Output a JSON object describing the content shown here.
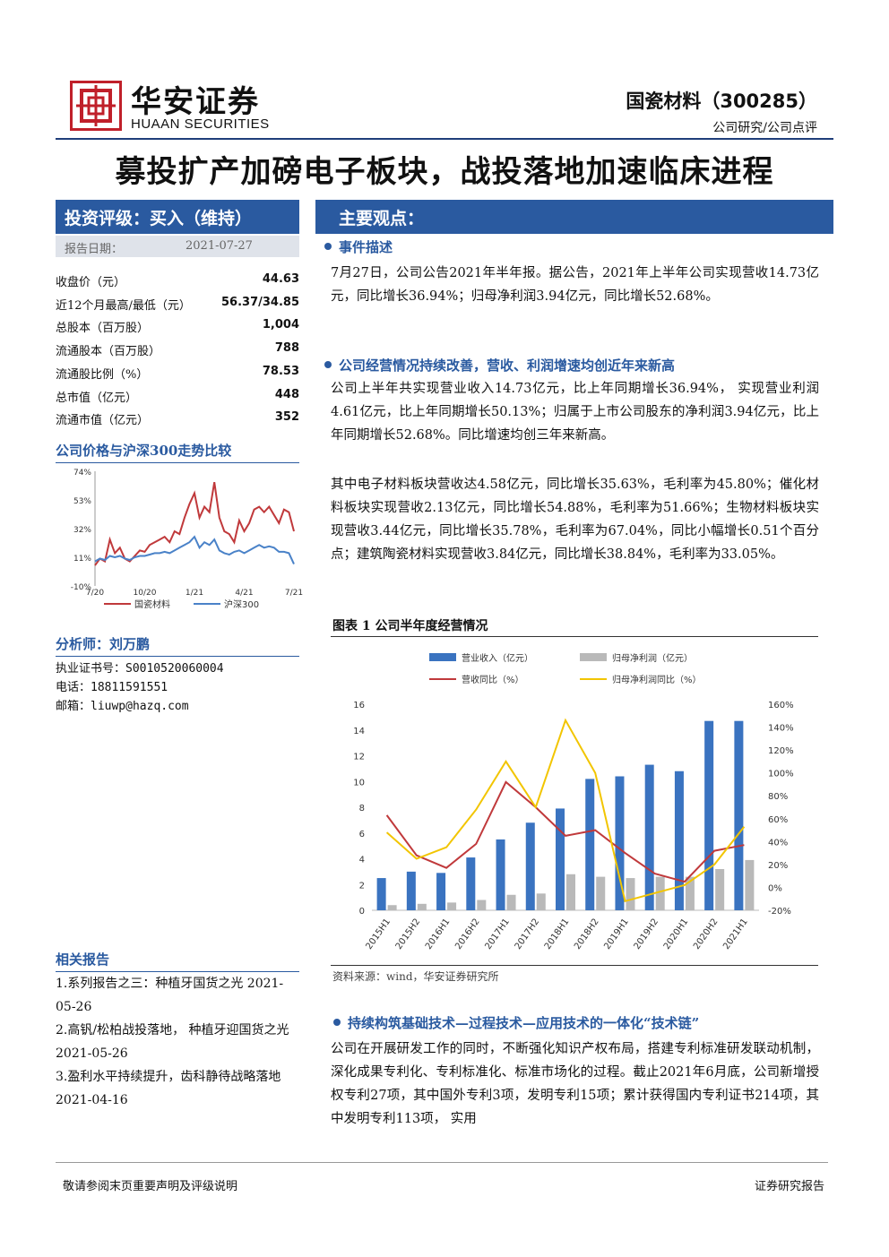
{
  "header": {
    "logo_cn": "华安证券",
    "logo_en": "HUAAN SECURITIES",
    "stock": "国瓷材料（300285）",
    "category": "公司研究/公司点评"
  },
  "title": "募投扩产加磅电子板块，战投落地加速临床进程",
  "sidebar": {
    "rating": "投资评级：买入（维持）",
    "date_label": "报告日期：",
    "date_value": "2021-07-27",
    "stats": [
      {
        "label": "收盘价（元）",
        "value": "44.63"
      },
      {
        "label": "近12个月最高/最低（元）",
        "value": "56.37/34.85"
      },
      {
        "label": "总股本（百万股）",
        "value": "1,004"
      },
      {
        "label": "流通股本（百万股）",
        "value": "788"
      },
      {
        "label": "流通股比例（%）",
        "value": "78.53"
      },
      {
        "label": "总市值（亿元）",
        "value": "448"
      },
      {
        "label": "流通市值（亿元）",
        "value": "352"
      }
    ],
    "price_chart_title": "公司价格与沪深300走势比较",
    "analyst_title": "分析师：刘万鹏",
    "analyst_cert": "执业证书号：S0010520060004",
    "analyst_phone": "电话：18811591551",
    "analyst_email": "邮箱：liuwp@hazq.com",
    "related_title": "相关报告",
    "related": [
      "1.系列报告之三：种植牙国货之光 2021-05-26",
      "2.高钒/松柏战投落地，  种植牙迎国货之光 2021-05-26",
      "3.盈利水平持续提升，齿科静待战略落地 2021-04-16"
    ]
  },
  "main": {
    "heading": "主要观点：",
    "s1_title": "事件描述",
    "s1_text": "7月27日，公司公告2021年半年报。据公告，2021年上半年公司实现营收14.73亿元，同比增长36.94%；归母净利润3.94亿元，同比增长52.68%。",
    "s2_title": "公司经营情况持续改善，营收、利润增速均创近年来新高",
    "s2_p1": "公司上半年共实现营业收入14.73亿元，比上年同期增长36.94%， 实现营业利润4.61亿元，比上年同期增长50.13%；归属于上市公司股东的净利润3.94亿元，比上年同期增长52.68%。同比增速均创三年来新高。",
    "s2_p2": "其中电子材料板块营收达4.58亿元，同比增长35.63%，毛利率为45.80%；催化材料板块实现营收2.13亿元，同比增长54.88%，毛利率为51.66%；生物材料板块实现营收3.44亿元，同比增长35.78%，毛利率为67.04%，同比小幅增长0.51个百分点；建筑陶瓷材料实现营收3.84亿元，同比增长38.84%，毛利率为33.05%。",
    "fig_title": "图表 1  公司半年度经营情况",
    "fig_source": "资料来源：wind，华安证券研究所",
    "s3_title": "持续构筑基础技术—过程技术—应用技术的一体化“技术链”",
    "s3_text": "公司在开展研发工作的同时，不断强化知识产权布局，搭建专利标准研发联动机制，深化成果专利化、专利标准化、标准市场化的过程。截止2021年6月底，公司新增授权专利27项，其中国外专利3项，发明专利15项；累计获得国内专利证书214项，其中发明专利113项，  实用"
  },
  "footer": {
    "left": "敬请参阅末页重要声明及评级说明",
    "right": "证券研究报告"
  },
  "chart_data": [
    {
      "type": "bar",
      "title": "",
      "categories": [
        "2015H1",
        "2015H2",
        "2016H1",
        "2016H2",
        "2017H1",
        "2017H2",
        "2018H1",
        "2018H2",
        "2019H1",
        "2019H2",
        "2020H1",
        "2020H2",
        "2021H1"
      ],
      "series": [
        {
          "name": "营业收入（亿元）",
          "axis": "left",
          "type": "bar",
          "color": "#3a73c0",
          "values": [
            2.5,
            3.0,
            2.9,
            4.1,
            5.5,
            6.8,
            7.9,
            10.2,
            10.4,
            11.3,
            10.8,
            14.7,
            14.7
          ]
        },
        {
          "name": "归母净利润（亿元）",
          "axis": "left",
          "type": "bar",
          "color": "#b9b9b9",
          "values": [
            0.4,
            0.5,
            0.6,
            0.8,
            1.2,
            1.3,
            2.8,
            2.6,
            2.5,
            2.6,
            2.6,
            3.2,
            3.9
          ]
        },
        {
          "name": "营收同比（%）",
          "axis": "right",
          "type": "line",
          "color": "#c0393b",
          "values": [
            63,
            28,
            17,
            38,
            92,
            70,
            45,
            50,
            30,
            12,
            5,
            32,
            37
          ]
        },
        {
          "name": "归母净利润同比（%）",
          "axis": "right",
          "type": "line",
          "color": "#f2c500",
          "values": [
            48,
            25,
            35,
            68,
            110,
            70,
            146,
            100,
            -12,
            -5,
            2,
            20,
            53
          ]
        }
      ],
      "ylim_left": [
        0,
        16
      ],
      "yticks_left": [
        0,
        2,
        4,
        6,
        8,
        10,
        12,
        14,
        16
      ],
      "ylim_right": [
        -20,
        160
      ],
      "yticks_right": [
        "-20%",
        "0%",
        "20%",
        "40%",
        "60%",
        "80%",
        "100%",
        "120%",
        "140%",
        "160%"
      ]
    },
    {
      "type": "line",
      "title": "",
      "xticks": [
        "7/20",
        "10/20",
        "1/21",
        "4/21",
        "7/21"
      ],
      "yticks": [
        "-10%",
        "11%",
        "32%",
        "53%",
        "74%"
      ],
      "ylim": [
        -10,
        74
      ],
      "series": [
        {
          "name": "国瓷材料",
          "color": "#c0393b",
          "values": [
            5,
            10,
            8,
            24,
            14,
            18,
            10,
            8,
            12,
            16,
            15,
            20,
            22,
            24,
            26,
            22,
            30,
            28,
            40,
            50,
            58,
            40,
            48,
            44,
            66,
            40,
            30,
            28,
            22,
            38,
            30,
            36,
            46,
            48,
            44,
            48,
            42,
            36,
            46,
            44,
            30
          ]
        },
        {
          "name": "沪深300",
          "color": "#4a82c8",
          "values": [
            8,
            10,
            9,
            12,
            11,
            12,
            10,
            9,
            11,
            12,
            12,
            13,
            14,
            14,
            15,
            14,
            16,
            18,
            20,
            22,
            26,
            18,
            22,
            20,
            24,
            16,
            14,
            13,
            15,
            16,
            14,
            16,
            18,
            20,
            18,
            19,
            18,
            15,
            15,
            14,
            6
          ]
        }
      ]
    }
  ]
}
